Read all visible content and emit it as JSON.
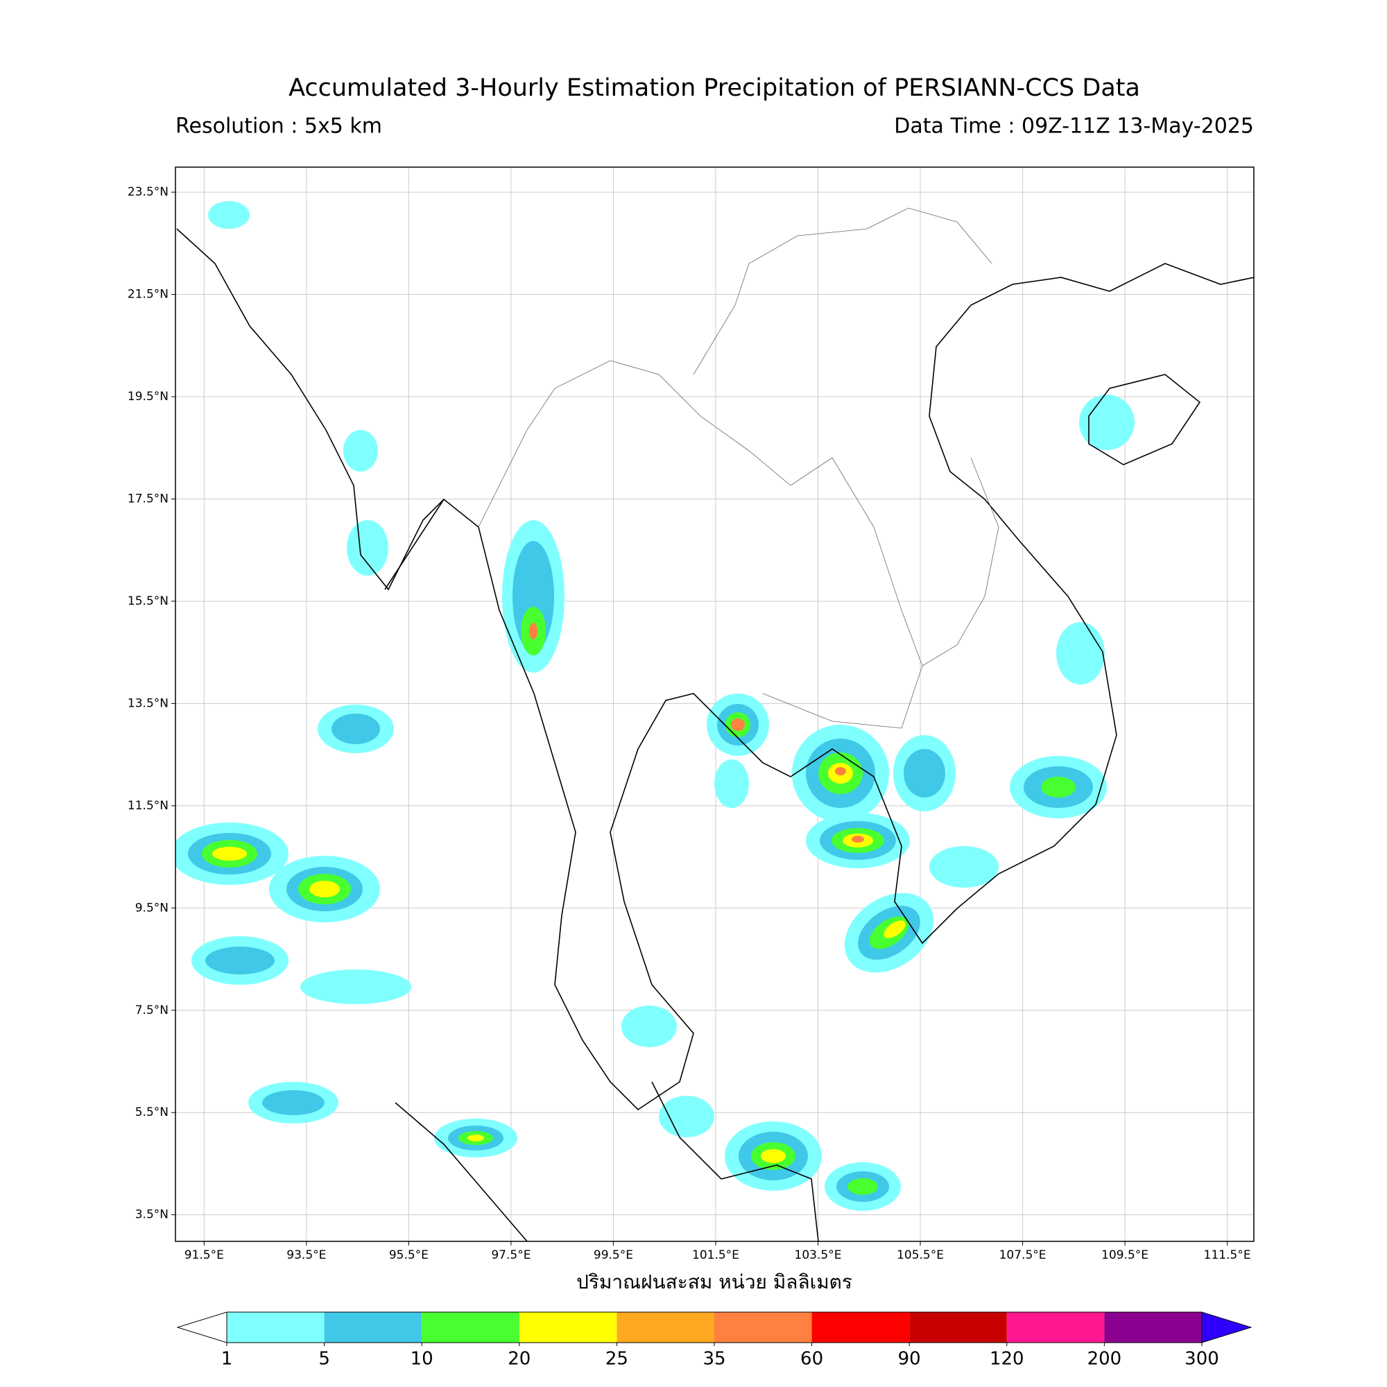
{
  "chart_data": {
    "type": "map",
    "title": "Accumulated 3-Hourly Estimation Precipitation of PERSIANN-CCS Data",
    "subtitle_left": "Resolution : 5x5 km",
    "subtitle_right": "Data Time : 09Z-11Z 13-May-2025",
    "xlabel": "ปริมาณฝนสะสม หน่วย มิลลิเมตร",
    "xlim": [
      90.94,
      112.02
    ],
    "ylim": [
      2.98,
      23.99
    ],
    "xticks": [
      {
        "value": 91.5,
        "label": "91.5°E"
      },
      {
        "value": 93.5,
        "label": "93.5°E"
      },
      {
        "value": 95.5,
        "label": "95.5°E"
      },
      {
        "value": 97.5,
        "label": "97.5°E"
      },
      {
        "value": 99.5,
        "label": "99.5°E"
      },
      {
        "value": 101.5,
        "label": "101.5°E"
      },
      {
        "value": 103.5,
        "label": "103.5°E"
      },
      {
        "value": 105.5,
        "label": "105.5°E"
      },
      {
        "value": 107.5,
        "label": "107.5°E"
      },
      {
        "value": 109.5,
        "label": "109.5°E"
      },
      {
        "value": 111.5,
        "label": "111.5°E"
      }
    ],
    "yticks": [
      {
        "value": 3.5,
        "label": "3.5°N"
      },
      {
        "value": 5.5,
        "label": "5.5°N"
      },
      {
        "value": 7.5,
        "label": "7.5°N"
      },
      {
        "value": 9.5,
        "label": "9.5°N"
      },
      {
        "value": 11.5,
        "label": "11.5°N"
      },
      {
        "value": 13.5,
        "label": "13.5°N"
      },
      {
        "value": 15.5,
        "label": "15.5°N"
      },
      {
        "value": 17.5,
        "label": "17.5°N"
      },
      {
        "value": 19.5,
        "label": "19.5°N"
      },
      {
        "value": 21.5,
        "label": "21.5°N"
      },
      {
        "value": 23.5,
        "label": "23.5°N"
      }
    ],
    "grid": true,
    "colorbar": {
      "levels": [
        1,
        5,
        10,
        20,
        25,
        35,
        60,
        90,
        120,
        200,
        300
      ],
      "colors": [
        "#80ffff",
        "#40c8e8",
        "#48ff30",
        "#ffff00",
        "#ffa820",
        "#ff8040",
        "#ff0000",
        "#c80000",
        "#ff1890",
        "#8c0090"
      ],
      "under_color": "#ffffff",
      "over_color": "#3000ff"
    }
  }
}
